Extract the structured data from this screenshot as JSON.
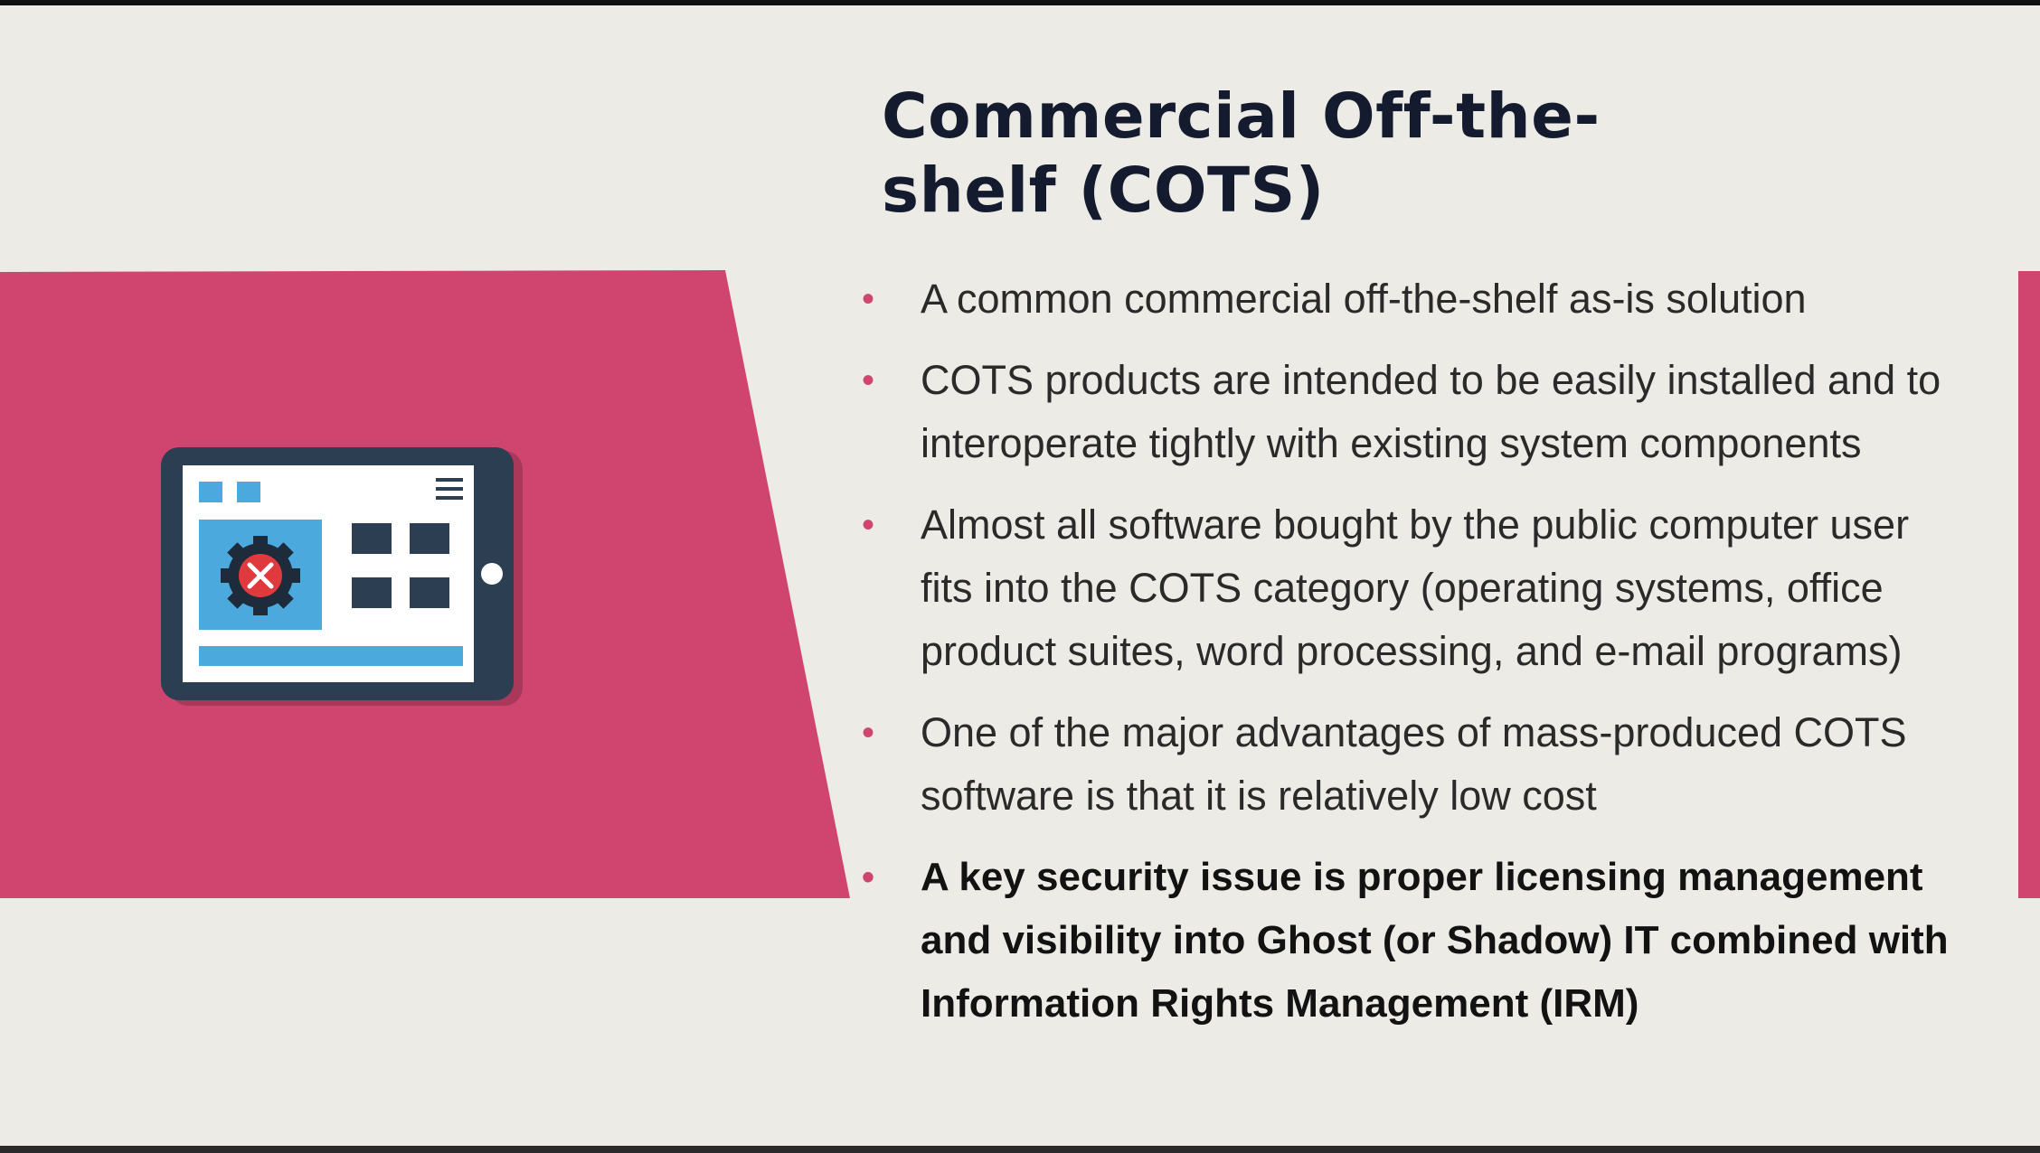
{
  "slide": {
    "title_line1": "Commercial Off-the-",
    "title_line2": "shelf (COTS)",
    "bullet_glyph": "•",
    "bullets": [
      {
        "lines": [
          "A common commercial off-the-shelf as-is solution"
        ]
      },
      {
        "lines": [
          "COTS products are intended to be easily installed and to",
          "interoperate tightly with existing system components"
        ]
      },
      {
        "lines": [
          "Almost all software bought by the public computer user",
          "fits into the COTS category (operating systems, office",
          "product suites, word processing, and e-mail programs)"
        ]
      },
      {
        "lines": [
          "One of the major advantages of mass-produced COTS",
          "software is that it is relatively low cost"
        ]
      },
      {
        "lines": [
          "A key security issue is proper licensing management",
          "and visibility into Ghost (or Shadow) IT combined with",
          "Information Rights Management (IRM)"
        ]
      }
    ]
  },
  "illustration": {
    "icon": "tablet-app-settings-icon",
    "gear_icon": "gear-tools-icon"
  },
  "colors": {
    "background": "#ecebe5",
    "accent_pink": "#cf4570",
    "title_navy": "#141b2e",
    "tablet_frame": "#2c3e52",
    "tablet_blue": "#4ba9de",
    "gear_red": "#e0393e"
  }
}
